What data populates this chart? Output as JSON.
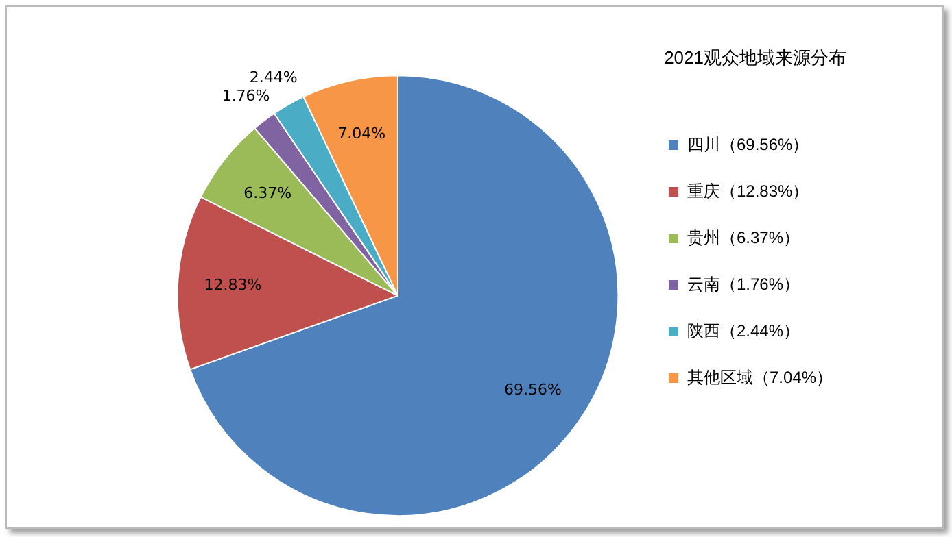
{
  "chart_data": {
    "type": "pie",
    "title": "2021观众地域来源分布",
    "categories": [
      "四川（69.56%）",
      "重庆（12.83%）",
      "贵州（6.37%）",
      "云南（1.76%）",
      "陕西（2.44%）",
      "其他区域（7.04%）"
    ],
    "values": [
      69.56,
      12.83,
      6.37,
      1.76,
      2.44,
      7.04
    ],
    "colors": [
      "#4f81bd",
      "#c0504d",
      "#9bbb59",
      "#8064a2",
      "#4bacc6",
      "#f79646"
    ],
    "value_labels": [
      "69.56%",
      "12.83%",
      "6.37%",
      "1.76%",
      "2.44%",
      "7.04%"
    ],
    "legend": "right"
  }
}
